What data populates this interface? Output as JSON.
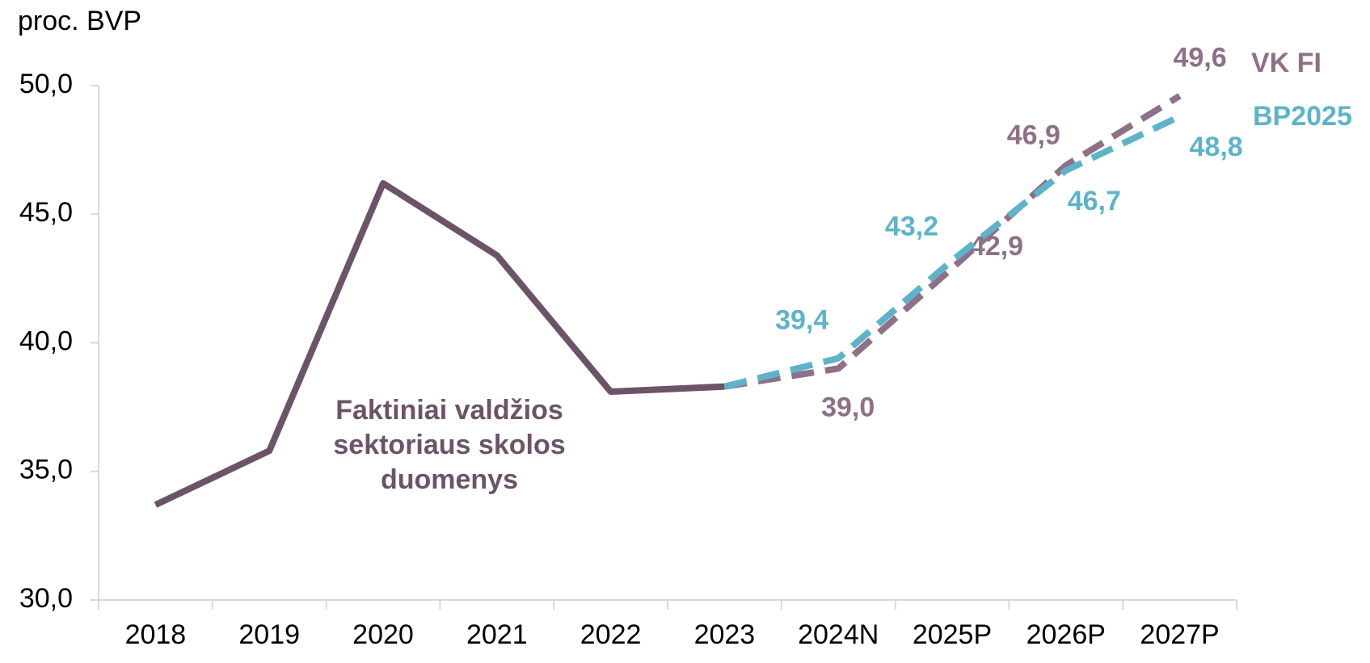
{
  "chart_data": {
    "type": "line",
    "y_axis_label": "proc. BVP",
    "categories": [
      "2018",
      "2019",
      "2020",
      "2021",
      "2022",
      "2023",
      "2024N",
      "2025P",
      "2026P",
      "2027P"
    ],
    "series": [
      {
        "color": "#6b5468",
        "style": "solid",
        "values": [
          33.7,
          35.8,
          46.2,
          43.4,
          38.1,
          38.3,
          null,
          null,
          null,
          null
        ]
      },
      {
        "name": "VK FI",
        "color": "#8e7088",
        "style": "dashed",
        "values": [
          null,
          null,
          null,
          null,
          null,
          38.3,
          39.0,
          42.9,
          46.9,
          49.6
        ],
        "value_labels": [
          null,
          null,
          null,
          null,
          null,
          null,
          "39,0",
          "42,9",
          "46,9",
          "49,6"
        ]
      },
      {
        "name": "BP2025",
        "color": "#5fb3c9",
        "style": "dashed",
        "values": [
          null,
          null,
          null,
          null,
          null,
          38.3,
          39.4,
          43.2,
          46.7,
          48.8
        ],
        "value_labels": [
          null,
          null,
          null,
          null,
          null,
          null,
          "39,4",
          "43,2",
          "46,7",
          "48,8"
        ]
      }
    ],
    "annotations": [
      "Faktiniai valdžios",
      "sektoriaus skolos",
      "duomenys"
    ],
    "ylim": [
      30,
      50
    ],
    "yticks": [
      {
        "value": 30,
        "label": "30,0"
      },
      {
        "value": 35,
        "label": "35,0"
      },
      {
        "value": 40,
        "label": "40,0"
      },
      {
        "value": 45,
        "label": "45,0"
      },
      {
        "value": 50,
        "label": "50,0"
      }
    ]
  }
}
